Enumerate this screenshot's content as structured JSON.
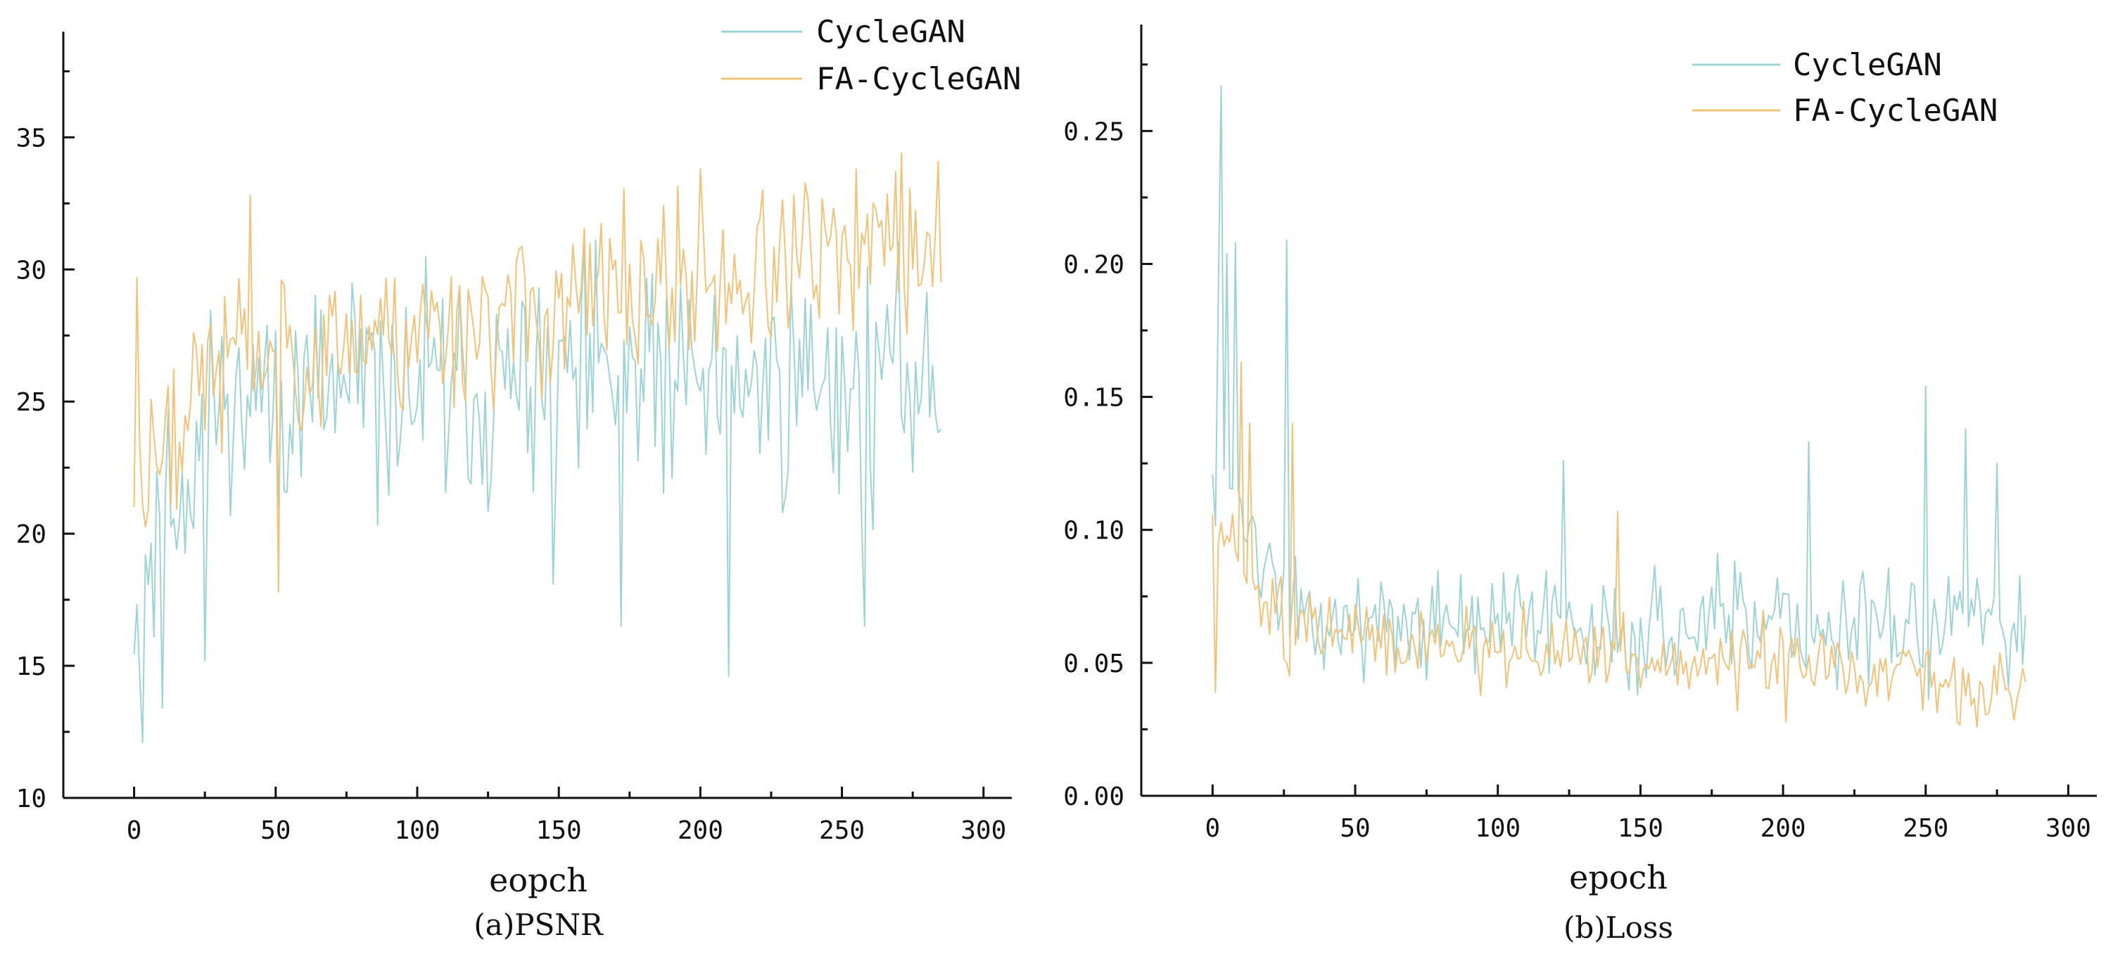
{
  "chart_data": [
    {
      "type": "line",
      "title": "",
      "caption": "(a)PSNR",
      "xlabel": "eopch",
      "ylabel": "",
      "xlim": [
        -25,
        310
      ],
      "ylim": [
        10,
        39
      ],
      "xticks": [
        0,
        50,
        100,
        150,
        200,
        250,
        300
      ],
      "yticks": [
        10,
        15,
        20,
        25,
        30,
        35
      ],
      "legend_position": "top-right",
      "series": [
        {
          "name": "CycleGAN",
          "color": "#9ed3d6",
          "generator": {
            "n": 286,
            "seed": 11,
            "start": 18,
            "mid": 25,
            "end": 26,
            "noise": 4.5,
            "spikes": [
              [
                2,
                14.6
              ],
              [
                3,
                12.1
              ],
              [
                10,
                13.4
              ],
              [
                25,
                15.2
              ],
              [
                148,
                18.1
              ],
              [
                172,
                16.5
              ],
              [
                210,
                14.6
              ],
              [
                258,
                16.5
              ]
            ],
            "min": 12,
            "max": 32
          }
        },
        {
          "name": "FA-CycleGAN",
          "color": "#f0c27a",
          "generator": {
            "n": 286,
            "seed": 23,
            "start": 22,
            "mid": 26.5,
            "end": 31,
            "noise": 3.4,
            "spikes": [
              [
                1,
                29.7
              ],
              [
                41,
                32.8
              ],
              [
                51,
                17.8
              ],
              [
                200,
                33.8
              ],
              [
                271,
                34.4
              ],
              [
                284,
                34.1
              ]
            ],
            "min": 17.5,
            "max": 34.5
          }
        }
      ]
    },
    {
      "type": "line",
      "title": "",
      "caption": "(b)Loss",
      "xlabel": "epoch",
      "ylabel": "",
      "xlim": [
        -25,
        310
      ],
      "ylim": [
        0,
        0.29
      ],
      "xticks": [
        0,
        50,
        100,
        150,
        200,
        250,
        300
      ],
      "yticks": [
        0.0,
        0.05,
        0.1,
        0.15,
        0.2,
        0.25
      ],
      "ytick_labels": [
        "0.00",
        "0.05",
        "0.10",
        "0.15",
        "0.20",
        "0.25"
      ],
      "legend_position": "top-right",
      "series": [
        {
          "name": "CycleGAN",
          "color": "#9ed3d6",
          "generator": {
            "n": 286,
            "seed": 37,
            "start": 0.13,
            "mid": 0.065,
            "end": 0.062,
            "noise": 0.022,
            "spikes": [
              [
                2,
                0.189
              ],
              [
                3,
                0.267
              ],
              [
                5,
                0.204
              ],
              [
                8,
                0.208
              ],
              [
                26,
                0.209
              ],
              [
                123,
                0.126
              ],
              [
                209,
                0.133
              ],
              [
                250,
                0.154
              ],
              [
                264,
                0.138
              ],
              [
                275,
                0.125
              ]
            ],
            "min": 0.03,
            "max": 0.27
          }
        },
        {
          "name": "FA-CycleGAN",
          "color": "#f0c27a",
          "generator": {
            "n": 286,
            "seed": 51,
            "start": 0.1,
            "mid": 0.062,
            "end": 0.04,
            "noise": 0.016,
            "spikes": [
              [
                1,
                0.039
              ],
              [
                10,
                0.163
              ],
              [
                13,
                0.14
              ],
              [
                28,
                0.14
              ],
              [
                142,
                0.107
              ]
            ],
            "min": 0.025,
            "max": 0.17
          }
        }
      ]
    }
  ]
}
